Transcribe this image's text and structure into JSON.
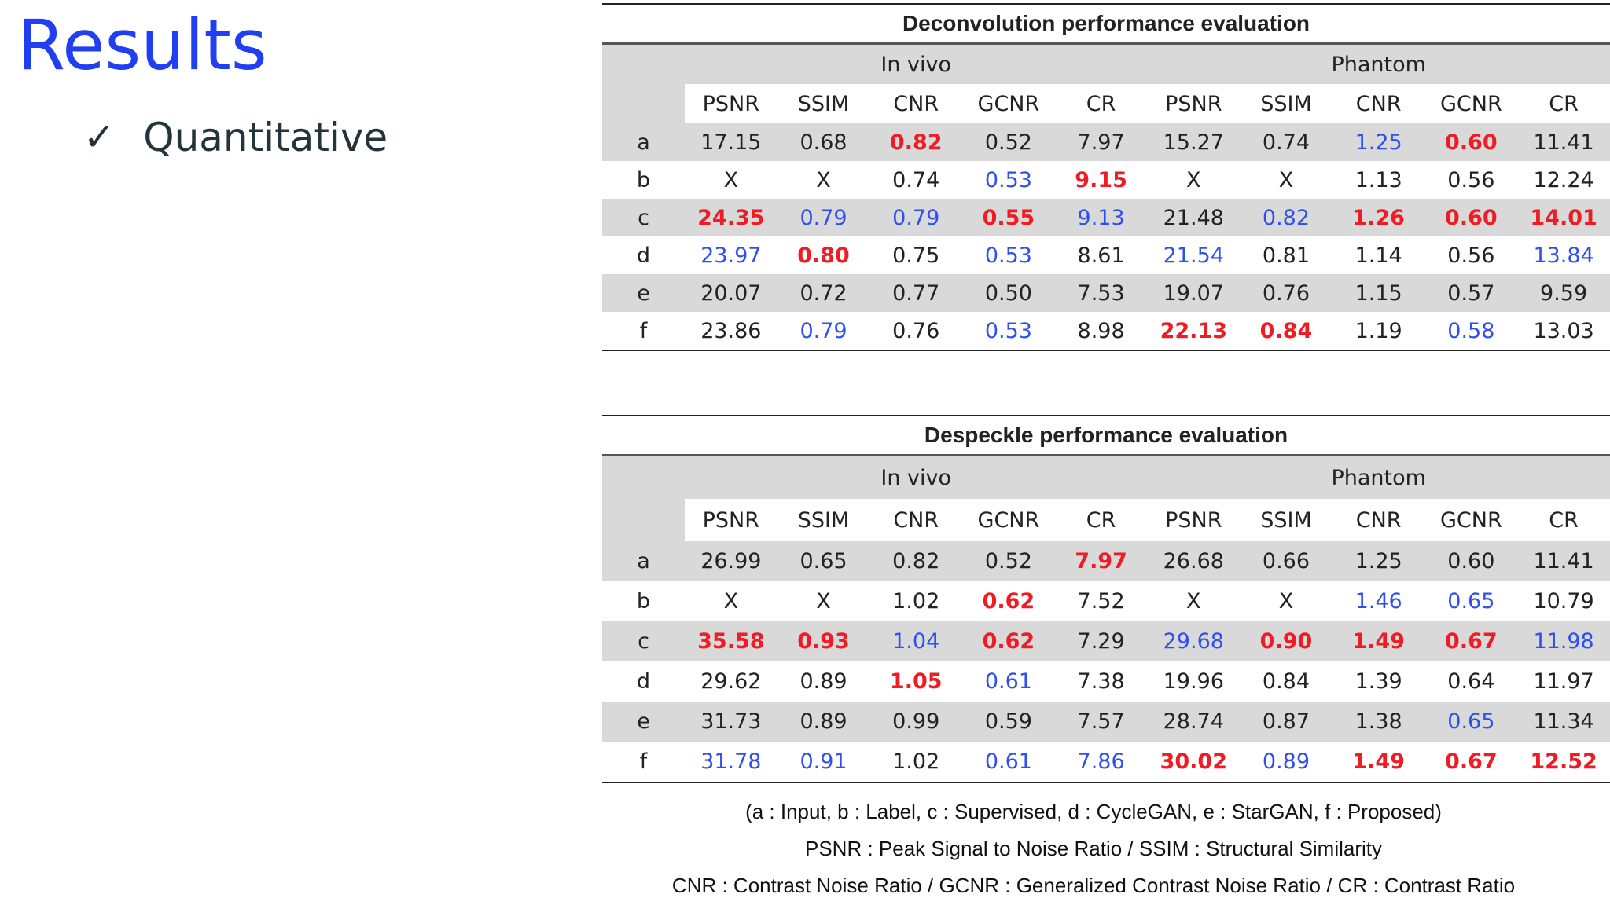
{
  "title": "Results",
  "bullet": {
    "icon": "check-icon",
    "label": "Quantitative"
  },
  "tables": [
    {
      "caption": "Deconvolution performance evaluation",
      "groups": [
        "In vivo",
        "Phantom"
      ],
      "metrics": [
        "PSNR",
        "SSIM",
        "CNR",
        "GCNR",
        "CR",
        "PSNR",
        "SSIM",
        "CNR",
        "GCNR",
        "CR"
      ],
      "rows": [
        {
          "label": "a",
          "cells": [
            {
              "v": "17.15",
              "c": ""
            },
            {
              "v": "0.68",
              "c": ""
            },
            {
              "v": "0.82",
              "c": "red"
            },
            {
              "v": "0.52",
              "c": ""
            },
            {
              "v": "7.97",
              "c": ""
            },
            {
              "v": "15.27",
              "c": ""
            },
            {
              "v": "0.74",
              "c": ""
            },
            {
              "v": "1.25",
              "c": "blue"
            },
            {
              "v": "0.60",
              "c": "red"
            },
            {
              "v": "11.41",
              "c": ""
            }
          ]
        },
        {
          "label": "b",
          "cells": [
            {
              "v": "X",
              "c": ""
            },
            {
              "v": "X",
              "c": ""
            },
            {
              "v": "0.74",
              "c": ""
            },
            {
              "v": "0.53",
              "c": "blue"
            },
            {
              "v": "9.15",
              "c": "red"
            },
            {
              "v": "X",
              "c": ""
            },
            {
              "v": "X",
              "c": ""
            },
            {
              "v": "1.13",
              "c": ""
            },
            {
              "v": "0.56",
              "c": ""
            },
            {
              "v": "12.24",
              "c": ""
            }
          ]
        },
        {
          "label": "c",
          "cells": [
            {
              "v": "24.35",
              "c": "red"
            },
            {
              "v": "0.79",
              "c": "blue"
            },
            {
              "v": "0.79",
              "c": "blue"
            },
            {
              "v": "0.55",
              "c": "red"
            },
            {
              "v": "9.13",
              "c": "blue"
            },
            {
              "v": "21.48",
              "c": ""
            },
            {
              "v": "0.82",
              "c": "blue"
            },
            {
              "v": "1.26",
              "c": "red"
            },
            {
              "v": "0.60",
              "c": "red"
            },
            {
              "v": "14.01",
              "c": "red"
            }
          ]
        },
        {
          "label": "d",
          "cells": [
            {
              "v": "23.97",
              "c": "blue"
            },
            {
              "v": "0.80",
              "c": "red"
            },
            {
              "v": "0.75",
              "c": ""
            },
            {
              "v": "0.53",
              "c": "blue"
            },
            {
              "v": "8.61",
              "c": ""
            },
            {
              "v": "21.54",
              "c": "blue"
            },
            {
              "v": "0.81",
              "c": ""
            },
            {
              "v": "1.14",
              "c": ""
            },
            {
              "v": "0.56",
              "c": ""
            },
            {
              "v": "13.84",
              "c": "blue"
            }
          ]
        },
        {
          "label": "e",
          "cells": [
            {
              "v": "20.07",
              "c": ""
            },
            {
              "v": "0.72",
              "c": ""
            },
            {
              "v": "0.77",
              "c": ""
            },
            {
              "v": "0.50",
              "c": ""
            },
            {
              "v": "7.53",
              "c": ""
            },
            {
              "v": "19.07",
              "c": ""
            },
            {
              "v": "0.76",
              "c": ""
            },
            {
              "v": "1.15",
              "c": ""
            },
            {
              "v": "0.57",
              "c": ""
            },
            {
              "v": "9.59",
              "c": ""
            }
          ]
        },
        {
          "label": "f",
          "cells": [
            {
              "v": "23.86",
              "c": ""
            },
            {
              "v": "0.79",
              "c": "blue"
            },
            {
              "v": "0.76",
              "c": ""
            },
            {
              "v": "0.53",
              "c": "blue"
            },
            {
              "v": "8.98",
              "c": ""
            },
            {
              "v": "22.13",
              "c": "red"
            },
            {
              "v": "0.84",
              "c": "red"
            },
            {
              "v": "1.19",
              "c": ""
            },
            {
              "v": "0.58",
              "c": "blue"
            },
            {
              "v": "13.03",
              "c": ""
            }
          ]
        }
      ]
    },
    {
      "caption": "Despeckle performance evaluation",
      "groups": [
        "In vivo",
        "Phantom"
      ],
      "metrics": [
        "PSNR",
        "SSIM",
        "CNR",
        "GCNR",
        "CR",
        "PSNR",
        "SSIM",
        "CNR",
        "GCNR",
        "CR"
      ],
      "rows": [
        {
          "label": "a",
          "cells": [
            {
              "v": "26.99",
              "c": ""
            },
            {
              "v": "0.65",
              "c": ""
            },
            {
              "v": "0.82",
              "c": ""
            },
            {
              "v": "0.52",
              "c": ""
            },
            {
              "v": "7.97",
              "c": "red"
            },
            {
              "v": "26.68",
              "c": ""
            },
            {
              "v": "0.66",
              "c": ""
            },
            {
              "v": "1.25",
              "c": ""
            },
            {
              "v": "0.60",
              "c": ""
            },
            {
              "v": "11.41",
              "c": ""
            }
          ]
        },
        {
          "label": "b",
          "cells": [
            {
              "v": "X",
              "c": ""
            },
            {
              "v": "X",
              "c": ""
            },
            {
              "v": "1.02",
              "c": ""
            },
            {
              "v": "0.62",
              "c": "red"
            },
            {
              "v": "7.52",
              "c": ""
            },
            {
              "v": "X",
              "c": ""
            },
            {
              "v": "X",
              "c": ""
            },
            {
              "v": "1.46",
              "c": "blue"
            },
            {
              "v": "0.65",
              "c": "blue"
            },
            {
              "v": "10.79",
              "c": ""
            }
          ]
        },
        {
          "label": "c",
          "cells": [
            {
              "v": "35.58",
              "c": "red"
            },
            {
              "v": "0.93",
              "c": "red"
            },
            {
              "v": "1.04",
              "c": "blue"
            },
            {
              "v": "0.62",
              "c": "red"
            },
            {
              "v": "7.29",
              "c": ""
            },
            {
              "v": "29.68",
              "c": "blue"
            },
            {
              "v": "0.90",
              "c": "red"
            },
            {
              "v": "1.49",
              "c": "red"
            },
            {
              "v": "0.67",
              "c": "red"
            },
            {
              "v": "11.98",
              "c": "blue"
            }
          ]
        },
        {
          "label": "d",
          "cells": [
            {
              "v": "29.62",
              "c": ""
            },
            {
              "v": "0.89",
              "c": ""
            },
            {
              "v": "1.05",
              "c": "red"
            },
            {
              "v": "0.61",
              "c": "blue"
            },
            {
              "v": "7.38",
              "c": ""
            },
            {
              "v": "19.96",
              "c": ""
            },
            {
              "v": "0.84",
              "c": ""
            },
            {
              "v": "1.39",
              "c": ""
            },
            {
              "v": "0.64",
              "c": ""
            },
            {
              "v": "11.97",
              "c": ""
            }
          ]
        },
        {
          "label": "e",
          "cells": [
            {
              "v": "31.73",
              "c": ""
            },
            {
              "v": "0.89",
              "c": ""
            },
            {
              "v": "0.99",
              "c": ""
            },
            {
              "v": "0.59",
              "c": ""
            },
            {
              "v": "7.57",
              "c": ""
            },
            {
              "v": "28.74",
              "c": ""
            },
            {
              "v": "0.87",
              "c": ""
            },
            {
              "v": "1.38",
              "c": ""
            },
            {
              "v": "0.65",
              "c": "blue"
            },
            {
              "v": "11.34",
              "c": ""
            }
          ]
        },
        {
          "label": "f",
          "cells": [
            {
              "v": "31.78",
              "c": "blue"
            },
            {
              "v": "0.91",
              "c": "blue"
            },
            {
              "v": "1.02",
              "c": ""
            },
            {
              "v": "0.61",
              "c": "blue"
            },
            {
              "v": "7.86",
              "c": "blue"
            },
            {
              "v": "30.02",
              "c": "red"
            },
            {
              "v": "0.89",
              "c": "blue"
            },
            {
              "v": "1.49",
              "c": "red"
            },
            {
              "v": "0.67",
              "c": "red"
            },
            {
              "v": "12.52",
              "c": "red"
            }
          ]
        }
      ]
    }
  ],
  "legend": [
    "(a : Input, b : Label, c : Supervised, d : CycleGAN, e : StarGAN, f : Proposed)",
    "PSNR : Peak Signal to Noise Ratio / SSIM : Structural Similarity",
    "CNR : Contrast Noise Ratio / GCNR : Generalized Contrast Noise Ratio / CR : Contrast Ratio"
  ],
  "colors": {
    "title": "#1f3ff0",
    "best": "#ee1c24",
    "second": "#2f4ff0",
    "shade": "#d9d9d9"
  }
}
